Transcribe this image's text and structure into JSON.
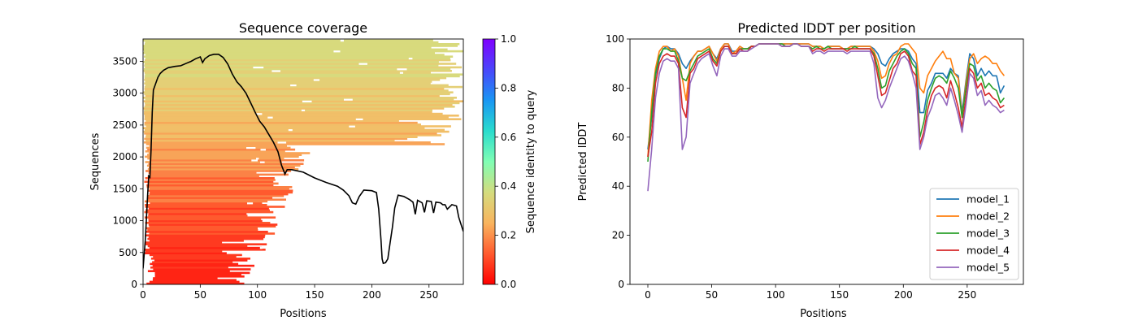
{
  "chart_data": [
    {
      "type": "heatmap",
      "title": "Sequence coverage",
      "xlabel": "Positions",
      "ylabel": "Sequences",
      "xlim": [
        0,
        280
      ],
      "ylim": [
        0,
        3850
      ],
      "xticks": [
        0,
        50,
        100,
        150,
        200,
        250
      ],
      "yticks": [
        0,
        500,
        1000,
        1500,
        2000,
        2500,
        3000,
        3500
      ],
      "colorbar": {
        "label": "Sequence identity to query",
        "min": 0.0,
        "max": 1.0,
        "ticks": [
          "0.0",
          "0.2",
          "0.4",
          "0.6",
          "0.8",
          "1.0"
        ],
        "colormap": "rainbow_r"
      },
      "coverage_line": {
        "color": "#000000",
        "points": [
          [
            0,
            250
          ],
          [
            2,
            700
          ],
          [
            4,
            1400
          ],
          [
            5,
            1700
          ],
          [
            6,
            1680
          ],
          [
            7,
            2100
          ],
          [
            8,
            2700
          ],
          [
            9,
            3050
          ],
          [
            11,
            3150
          ],
          [
            13,
            3250
          ],
          [
            15,
            3310
          ],
          [
            18,
            3360
          ],
          [
            22,
            3400
          ],
          [
            28,
            3420
          ],
          [
            33,
            3430
          ],
          [
            38,
            3470
          ],
          [
            42,
            3500
          ],
          [
            46,
            3540
          ],
          [
            50,
            3570
          ],
          [
            52,
            3480
          ],
          [
            54,
            3540
          ],
          [
            58,
            3590
          ],
          [
            62,
            3610
          ],
          [
            66,
            3610
          ],
          [
            70,
            3560
          ],
          [
            74,
            3460
          ],
          [
            78,
            3300
          ],
          [
            82,
            3180
          ],
          [
            86,
            3100
          ],
          [
            90,
            3000
          ],
          [
            94,
            2850
          ],
          [
            98,
            2700
          ],
          [
            102,
            2560
          ],
          [
            106,
            2470
          ],
          [
            110,
            2350
          ],
          [
            114,
            2230
          ],
          [
            118,
            2080
          ],
          [
            121,
            1870
          ],
          [
            123,
            1780
          ],
          [
            124,
            1730
          ],
          [
            126,
            1800
          ],
          [
            130,
            1800
          ],
          [
            140,
            1760
          ],
          [
            150,
            1670
          ],
          [
            160,
            1600
          ],
          [
            170,
            1540
          ],
          [
            175,
            1480
          ],
          [
            180,
            1390
          ],
          [
            183,
            1280
          ],
          [
            186,
            1260
          ],
          [
            189,
            1380
          ],
          [
            193,
            1480
          ],
          [
            200,
            1470
          ],
          [
            204,
            1440
          ],
          [
            206,
            1180
          ],
          [
            208,
            700
          ],
          [
            209,
            400
          ],
          [
            210,
            330
          ],
          [
            212,
            340
          ],
          [
            214,
            400
          ],
          [
            216,
            650
          ],
          [
            218,
            900
          ],
          [
            220,
            1200
          ],
          [
            223,
            1400
          ],
          [
            228,
            1380
          ],
          [
            233,
            1330
          ],
          [
            236,
            1290
          ],
          [
            238,
            1100
          ],
          [
            240,
            1320
          ],
          [
            244,
            1280
          ],
          [
            246,
            1130
          ],
          [
            248,
            1310
          ],
          [
            252,
            1300
          ],
          [
            254,
            1120
          ],
          [
            256,
            1290
          ],
          [
            260,
            1280
          ],
          [
            262,
            1250
          ],
          [
            264,
            1250
          ],
          [
            266,
            1180
          ],
          [
            270,
            1250
          ],
          [
            274,
            1230
          ],
          [
            276,
            1050
          ],
          [
            278,
            940
          ],
          [
            280,
            830
          ]
        ]
      }
    },
    {
      "type": "line",
      "title": "Predicted lDDT per position",
      "xlabel": "Positions",
      "ylabel": "Predicted lDDT",
      "xlim": [
        -14,
        294
      ],
      "ylim": [
        0,
        100
      ],
      "xticks": [
        0,
        50,
        100,
        150,
        200,
        250
      ],
      "yticks": [
        0,
        20,
        40,
        60,
        80,
        100
      ],
      "legend_position": "lower-right",
      "x": [
        0,
        3,
        6,
        9,
        12,
        15,
        18,
        21,
        24,
        27,
        30,
        33,
        36,
        39,
        42,
        45,
        48,
        51,
        54,
        57,
        60,
        63,
        66,
        69,
        72,
        75,
        78,
        81,
        84,
        87,
        90,
        93,
        96,
        99,
        102,
        105,
        108,
        111,
        114,
        117,
        120,
        123,
        126,
        129,
        132,
        135,
        138,
        141,
        144,
        147,
        150,
        153,
        156,
        159,
        162,
        165,
        168,
        171,
        174,
        177,
        180,
        183,
        186,
        189,
        192,
        195,
        198,
        201,
        204,
        207,
        210,
        213,
        216,
        219,
        222,
        225,
        228,
        231,
        234,
        237,
        240,
        243,
        246,
        249,
        252,
        255,
        258,
        261,
        264,
        267,
        270,
        273,
        276,
        279
      ],
      "series": [
        {
          "name": "model_1",
          "color": "#1f77b4",
          "values": [
            55,
            68,
            85,
            92,
            96,
            97,
            96,
            96,
            94,
            90,
            88,
            91,
            93,
            95,
            95,
            96,
            97,
            94,
            92,
            96,
            98,
            98,
            95,
            95,
            97,
            96,
            96,
            97,
            97,
            98,
            98,
            98,
            98,
            98,
            98,
            98,
            98,
            98,
            98,
            98,
            98,
            98,
            98,
            97,
            97,
            97,
            96,
            97,
            97,
            97,
            97,
            96,
            96,
            97,
            97,
            97,
            97,
            97,
            97,
            96,
            94,
            90,
            89,
            92,
            94,
            95,
            96,
            96,
            95,
            92,
            90,
            70,
            70,
            79,
            82,
            86,
            86,
            86,
            84,
            88,
            86,
            85,
            70,
            83,
            94,
            92,
            85,
            88,
            85,
            87,
            85,
            85,
            78,
            81
          ]
        },
        {
          "name": "model_2",
          "color": "#ff7f0e",
          "values": [
            52,
            75,
            88,
            95,
            97,
            97,
            95,
            96,
            93,
            84,
            75,
            90,
            93,
            95,
            95,
            96,
            97,
            94,
            91,
            96,
            98,
            98,
            94,
            95,
            97,
            96,
            96,
            97,
            97,
            98,
            98,
            98,
            98,
            98,
            98,
            98,
            98,
            98,
            98,
            98,
            98,
            98,
            98,
            97,
            97,
            97,
            96,
            97,
            97,
            97,
            97,
            96,
            96,
            97,
            97,
            97,
            97,
            97,
            97,
            95,
            91,
            84,
            85,
            90,
            93,
            94,
            97,
            98,
            98,
            96,
            94,
            80,
            78,
            85,
            88,
            91,
            93,
            95,
            92,
            92,
            86,
            84,
            68,
            82,
            92,
            94,
            90,
            92,
            93,
            92,
            90,
            90,
            87,
            85
          ]
        },
        {
          "name": "model_3",
          "color": "#2ca02c",
          "values": [
            50,
            70,
            86,
            93,
            96,
            96,
            95,
            95,
            91,
            84,
            83,
            87,
            90,
            93,
            94,
            95,
            96,
            92,
            90,
            95,
            97,
            97,
            94,
            94,
            96,
            96,
            96,
            97,
            97,
            98,
            98,
            98,
            98,
            98,
            98,
            98,
            97,
            97,
            98,
            98,
            97,
            97,
            97,
            96,
            97,
            96,
            96,
            97,
            96,
            96,
            96,
            96,
            96,
            96,
            97,
            96,
            96,
            96,
            96,
            94,
            88,
            80,
            81,
            87,
            90,
            93,
            95,
            96,
            94,
            90,
            88,
            60,
            66,
            75,
            80,
            84,
            85,
            84,
            82,
            87,
            84,
            80,
            68,
            80,
            90,
            89,
            83,
            85,
            80,
            82,
            80,
            79,
            74,
            76
          ]
        },
        {
          "name": "model_4",
          "color": "#d62728",
          "values": [
            52,
            62,
            82,
            90,
            93,
            94,
            93,
            93,
            90,
            72,
            68,
            86,
            88,
            92,
            93,
            94,
            95,
            91,
            89,
            95,
            97,
            97,
            94,
            94,
            96,
            95,
            95,
            97,
            97,
            98,
            98,
            98,
            98,
            98,
            98,
            97,
            97,
            97,
            98,
            98,
            97,
            97,
            97,
            95,
            96,
            96,
            95,
            96,
            96,
            96,
            96,
            96,
            95,
            96,
            96,
            96,
            96,
            96,
            96,
            93,
            85,
            77,
            78,
            83,
            88,
            90,
            94,
            95,
            93,
            87,
            85,
            57,
            62,
            71,
            77,
            80,
            81,
            80,
            76,
            83,
            78,
            72,
            64,
            76,
            88,
            86,
            80,
            82,
            77,
            78,
            76,
            75,
            72,
            73
          ]
        },
        {
          "name": "model_5",
          "color": "#9467bd",
          "values": [
            38,
            55,
            76,
            86,
            91,
            92,
            91,
            91,
            88,
            55,
            60,
            82,
            86,
            90,
            92,
            93,
            94,
            89,
            85,
            93,
            96,
            96,
            93,
            93,
            95,
            95,
            95,
            96,
            97,
            98,
            98,
            98,
            98,
            98,
            98,
            97,
            97,
            97,
            98,
            98,
            97,
            97,
            97,
            94,
            95,
            95,
            94,
            95,
            95,
            95,
            95,
            95,
            94,
            95,
            95,
            95,
            95,
            95,
            95,
            90,
            76,
            72,
            75,
            80,
            84,
            88,
            92,
            93,
            91,
            86,
            80,
            55,
            60,
            68,
            72,
            77,
            78,
            76,
            73,
            80,
            75,
            69,
            62,
            73,
            86,
            84,
            77,
            79,
            73,
            75,
            73,
            72,
            70,
            71
          ]
        }
      ]
    }
  ]
}
